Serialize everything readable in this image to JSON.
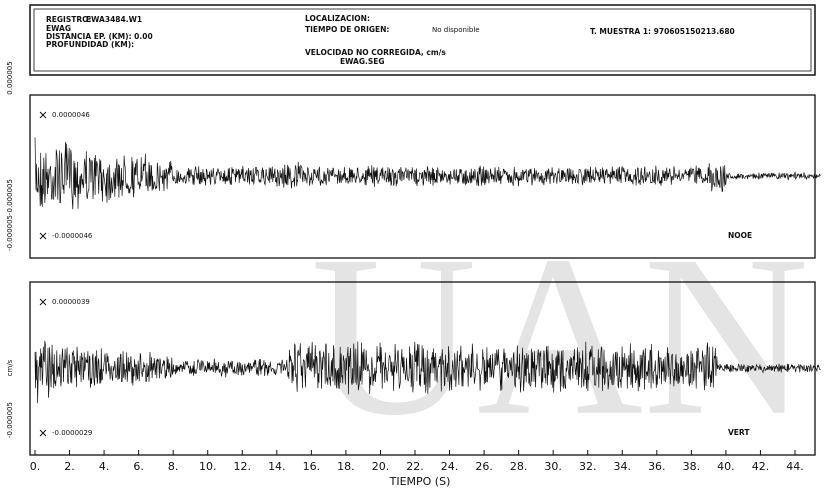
{
  "header": {
    "registro_label": "REGISTRO:",
    "registro": "EWA3484.W1",
    "station": "EWAG",
    "distancia": "DISTANCIA EP. (KM): 0.00",
    "profundidad": "PROFUNDIDAD (KM):",
    "localizacion": "LOCALIZACION:",
    "tiempo_origen_label": "TIEMPO DE ORIGEN:",
    "tiempo_origen": "No disponible",
    "velocidad": "VELOCIDAD NO CORREGIDA, cm/s",
    "archivo": "EWAG.SEG",
    "muestra": "T. MUESTRA 1: 970605150213.680"
  },
  "side_labels": [
    "0.000005",
    "-0.000005-0.000005",
    "cm/s",
    "-0.000005"
  ],
  "panels": [
    {
      "max": "0.0000046",
      "min": "-0.0000046",
      "component": "NOOE"
    },
    {
      "max": "0.0000039",
      "min": "-0.0000029",
      "component": "VERT"
    }
  ],
  "x_axis": {
    "ticks": [
      "0.",
      "2.",
      "4.",
      "6.",
      "8.",
      "10.",
      "12.",
      "14.",
      "16.",
      "18.",
      "20.",
      "22.",
      "24.",
      "26.",
      "28.",
      "30.",
      "32.",
      "34.",
      "36.",
      "38.",
      "40.",
      "42.",
      "44."
    ],
    "label": "TIEMPO (S)"
  },
  "watermark": "UAN"
}
